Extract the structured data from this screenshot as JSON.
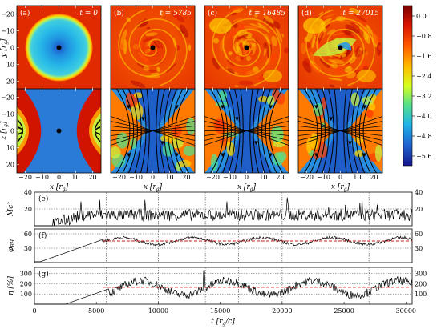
{
  "panels": [
    {
      "label": "(a)",
      "time": "t = 0"
    },
    {
      "label": "(b)",
      "time": "t = 5785"
    },
    {
      "label": "(c)",
      "time": "t = 16485"
    },
    {
      "label": "(d)",
      "time": "t = 27015"
    }
  ],
  "axes": {
    "y_label": "y [r",
    "z_label": "z [r",
    "x_label": "x [r",
    "sub_g": "g",
    "close": "]",
    "x_ticks": [
      "−20",
      "−10",
      "0",
      "10",
      "20"
    ],
    "y_ticks": [
      "20",
      "10",
      "0",
      "−10",
      "−20"
    ],
    "z_ticks": [
      "20",
      "10",
      "0",
      "−10",
      "−20"
    ]
  },
  "colorbar": {
    "ticks": [
      "0.0",
      "−0.8",
      "−1.6",
      "−2.4",
      "−3.2",
      "−4.0",
      "−4.8",
      "−5.6"
    ],
    "colors": [
      "#7a0000",
      "#d71400",
      "#ff5a00",
      "#ffbb00",
      "#d8ff1e",
      "#55e08a",
      "#1fb4e6",
      "#1e64d2",
      "#16168c"
    ]
  },
  "timeseries": {
    "x_label": "t",
    "x_unit": "[r",
    "x_unit_tail": "/c]",
    "x_ticks": [
      "0",
      "5000",
      "10000",
      "15000",
      "20000",
      "25000",
      "30000"
    ],
    "vlines": [
      5785,
      10000,
      13800,
      16485,
      20000,
      27015
    ],
    "panels": [
      {
        "label": "(e)",
        "ylabel": "Ṁc²",
        "ticks": [
          "40",
          "20"
        ],
        "ymin": 0,
        "ymax": 40
      },
      {
        "label": "(f)",
        "ylabel": "φ",
        "ylabel_sub": "BH",
        "ticks": [
          "60",
          "30"
        ],
        "ymin": 0,
        "ymax": 70,
        "mean": 45
      },
      {
        "label": "(g)",
        "ylabel": "η [%]",
        "ticks": [
          "300",
          "200",
          "100"
        ],
        "ymin": 0,
        "ymax": 360,
        "mean": 165
      }
    ]
  },
  "colors": {
    "series": "#000000",
    "mean": "#c81e1e",
    "grid": "#555555"
  }
}
